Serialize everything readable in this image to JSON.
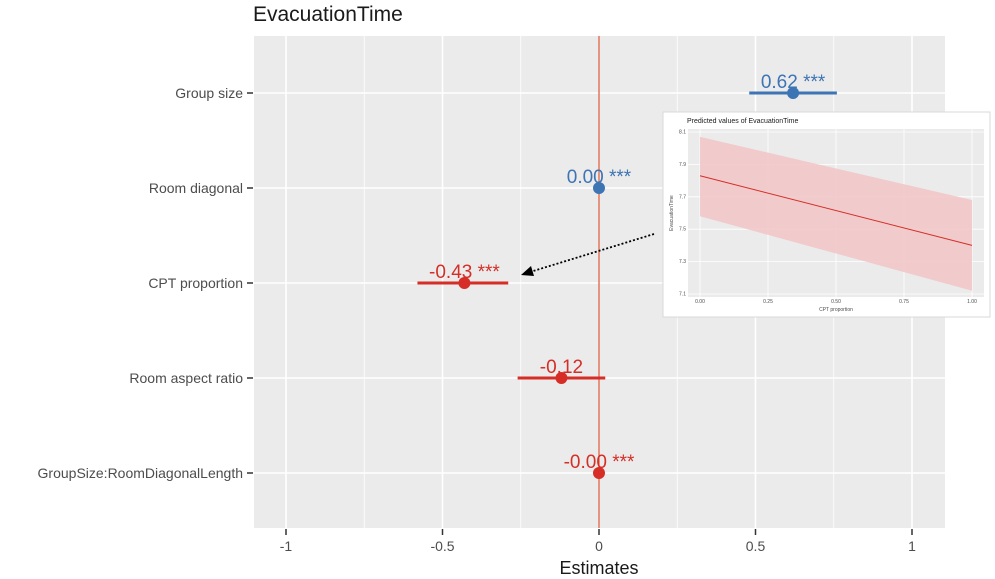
{
  "chart_data": [
    {
      "type": "forest",
      "title": "EvacuationTime",
      "xlabel": "Estimates",
      "ylabel": "",
      "xlim": [
        -1.1,
        1.1
      ],
      "x_ticks": [
        -1,
        -0.5,
        0,
        0.5,
        1
      ],
      "x_tick_labels": [
        "-1",
        "-0.5",
        "0",
        "0.5",
        "1"
      ],
      "reference_line": 0,
      "grid": true,
      "colors": {
        "positive": "#3c74b4",
        "negative": "#d62e27",
        "reference": "#d9542f",
        "panel": "#ebebeb",
        "grid": "#ffffff"
      },
      "terms": [
        {
          "label": "Group size",
          "estimate": 0.62,
          "ci_low": 0.48,
          "ci_high": 0.76,
          "text": "0.62 ***",
          "sign": "positive"
        },
        {
          "label": "Room diagonal",
          "estimate": 0.0,
          "ci_low": 0.0,
          "ci_high": 0.0,
          "text": "0.00 ***",
          "sign": "positive"
        },
        {
          "label": "CPT proportion",
          "estimate": -0.43,
          "ci_low": -0.58,
          "ci_high": -0.29,
          "text": "-0.43 ***",
          "sign": "negative"
        },
        {
          "label": "Room aspect ratio",
          "estimate": -0.12,
          "ci_low": -0.26,
          "ci_high": 0.02,
          "text": "-0.12",
          "sign": "negative"
        },
        {
          "label": "GroupSize:RoomDiagonalLength",
          "estimate": 0.0,
          "ci_low": 0.0,
          "ci_high": 0.0,
          "text": "-0.00 ***",
          "sign": "negative"
        }
      ],
      "annotation": {
        "type": "dotted-arrow",
        "points_to": "CPT proportion",
        "from": "inset"
      }
    },
    {
      "type": "line",
      "title": "Predicted values of EvacuationTime",
      "xlabel": "CPT proportion",
      "ylabel": "EvacuationTime",
      "xlim": [
        0,
        1
      ],
      "ylim": [
        7.1,
        8.1
      ],
      "x_ticks": [
        0,
        0.25,
        0.5,
        0.75,
        1
      ],
      "x_tick_labels": [
        "0.00",
        "0.25",
        "0.50",
        "0.75",
        "1.00"
      ],
      "y_ticks": [
        7.1,
        7.3,
        7.5,
        7.7,
        7.9,
        8.1
      ],
      "y_tick_labels": [
        "7.1",
        "7.3",
        "7.5",
        "7.7",
        "7.9",
        "8.1"
      ],
      "grid": true,
      "colors": {
        "line": "#d62e27",
        "band": "#f2c4c6",
        "panel": "#ebebeb"
      },
      "series": [
        {
          "x": [
            0,
            1
          ],
          "y": [
            7.83,
            7.4
          ],
          "ci_low": [
            7.58,
            7.12
          ],
          "ci_high": [
            8.07,
            7.68
          ]
        }
      ]
    }
  ]
}
